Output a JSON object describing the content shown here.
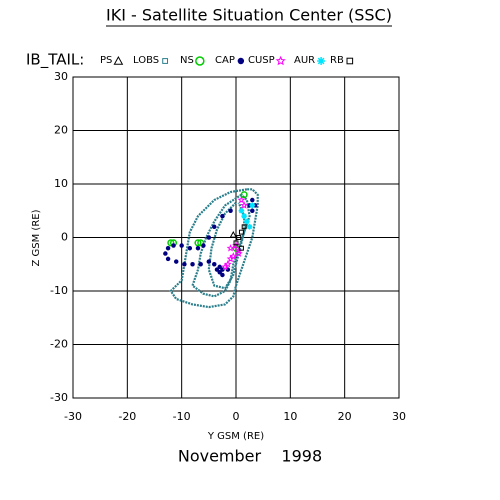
{
  "chart_data": {
    "type": "scatter",
    "title": "IKI - Satellite Situation Center (SSC)",
    "legend_title": "IB_TAIL:",
    "xlabel": "Y GSM (RE)",
    "ylabel": "Z GSM (RE)",
    "caption": "November    1998",
    "xlim": [
      -30,
      30
    ],
    "ylim": [
      -30,
      30
    ],
    "xticks": [
      -30,
      -20,
      -10,
      0,
      10,
      20,
      30
    ],
    "yticks": [
      -30,
      -20,
      -10,
      0,
      10,
      20,
      30
    ],
    "grid": true,
    "series": [
      {
        "name": "PS",
        "color": "#000000",
        "marker": "triangle",
        "x": [
          -0.5
        ],
        "y": [
          0.5
        ]
      },
      {
        "name": "LOBS",
        "color": "#2b7f8c",
        "marker": "line",
        "x": [
          2,
          -1,
          -4,
          -7,
          -8.5,
          -9,
          -9.5,
          -10,
          -12,
          -11,
          -8,
          -5,
          -2,
          -0.5,
          0,
          1,
          2,
          3,
          3.5,
          4,
          4,
          3,
          2,
          null,
          1,
          -2,
          -4,
          -5.5,
          -6.5,
          -7,
          -8,
          -6,
          -4,
          -2,
          -1,
          -0.5,
          0.5,
          1.5,
          2.5,
          2,
          1,
          null,
          0,
          -2,
          -3.5,
          -4.5,
          -5,
          -4,
          -2,
          -0.5,
          0.5,
          1.5,
          1.5,
          0.5
        ],
        "y": [
          9,
          8.5,
          7,
          4,
          1,
          -2,
          -5,
          -8,
          -10,
          -11.5,
          -12.5,
          -13,
          -12.5,
          -11,
          -9,
          -6,
          -3,
          0,
          3,
          6,
          8,
          9,
          9,
          null,
          8,
          6,
          3,
          0,
          -3,
          -6,
          -9,
          -10.5,
          -11,
          -10,
          -8,
          -5,
          -2,
          1,
          4,
          7,
          8,
          null,
          6.5,
          4.5,
          1.5,
          -2,
          -6,
          -9,
          -9.5,
          -7,
          -3,
          1,
          4,
          6.5
        ]
      },
      {
        "name": "NS",
        "color": "#00cc00",
        "marker": "circle",
        "x": [
          -12,
          -11.5,
          -7,
          -6.5,
          1.5,
          0
        ],
        "y": [
          -1,
          -1,
          -1,
          -1,
          8,
          -2
        ]
      },
      {
        "name": "CAP",
        "color": "#000080",
        "marker": "dot",
        "x": [
          -1,
          -2.5,
          -4,
          -5,
          -6,
          -7,
          -8.5,
          -10,
          -11.5,
          -12.5,
          -13,
          -12.5,
          -11,
          -9.5,
          -8,
          -6.5,
          -5,
          -4,
          -3.5,
          -3,
          -2.5,
          -1.5,
          2.5,
          3,
          3.5,
          3,
          -3,
          -2.5
        ],
        "y": [
          5,
          4,
          2,
          0,
          -1.5,
          -2,
          -2,
          -1.5,
          -1.5,
          -2,
          -3,
          -4,
          -4.5,
          -5,
          -5,
          -5,
          -4.5,
          -5,
          -6,
          -6.5,
          -7,
          -6,
          6,
          7,
          6,
          5,
          -5.5,
          -6
        ]
      },
      {
        "name": "CUSP",
        "color": "#ff00ff",
        "marker": "star",
        "x": [
          1,
          1.5,
          0.5,
          -0.5,
          -1,
          -1.5,
          -2,
          -1,
          0,
          0.5
        ],
        "y": [
          7,
          6,
          -2.5,
          -3.5,
          -4,
          -5,
          -5.5,
          -2,
          -1.5,
          -3
        ]
      },
      {
        "name": "AUR",
        "color": "#00e5ff",
        "marker": "asterisk",
        "x": [
          1,
          1.5,
          2,
          2.5,
          3
        ],
        "y": [
          5,
          4,
          3,
          2,
          6
        ]
      },
      {
        "name": "RB",
        "color": "#000000",
        "marker": "square",
        "x": [
          0.5,
          1,
          1.5,
          0,
          1
        ],
        "y": [
          0,
          1,
          2,
          -1,
          -2
        ]
      }
    ]
  }
}
